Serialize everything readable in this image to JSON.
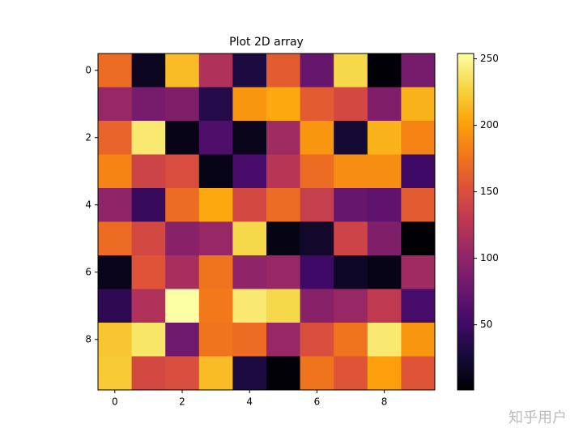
{
  "chart_data": {
    "type": "heatmap",
    "title": "Plot 2D array",
    "colormap": "inferno",
    "z": [
      [
        170,
        15,
        215,
        120,
        30,
        160,
        75,
        230,
        2,
        85
      ],
      [
        105,
        85,
        90,
        35,
        195,
        205,
        160,
        145,
        90,
        210
      ],
      [
        165,
        240,
        10,
        60,
        12,
        110,
        195,
        25,
        210,
        185
      ],
      [
        185,
        140,
        150,
        10,
        55,
        125,
        170,
        190,
        190,
        50
      ],
      [
        100,
        45,
        170,
        205,
        145,
        170,
        135,
        75,
        70,
        160
      ],
      [
        170,
        145,
        95,
        105,
        230,
        8,
        20,
        140,
        90,
        1
      ],
      [
        12,
        155,
        115,
        175,
        100,
        105,
        50,
        18,
        10,
        110
      ],
      [
        40,
        120,
        254,
        178,
        240,
        230,
        95,
        105,
        130,
        55
      ],
      [
        220,
        238,
        80,
        175,
        170,
        105,
        150,
        175,
        240,
        195
      ],
      [
        222,
        145,
        150,
        215,
        30,
        3,
        175,
        155,
        200,
        155
      ]
    ],
    "xlim": [
      -0.5,
      9.5
    ],
    "xticks": [
      0,
      2,
      4,
      6,
      8
    ],
    "ylim": [
      9.5,
      -0.5
    ],
    "yticks": [
      0,
      2,
      4,
      6,
      8
    ],
    "zlim": [
      1,
      254
    ],
    "zticks": [
      50,
      100,
      150,
      200,
      250
    ]
  },
  "watermark": "知乎用户"
}
